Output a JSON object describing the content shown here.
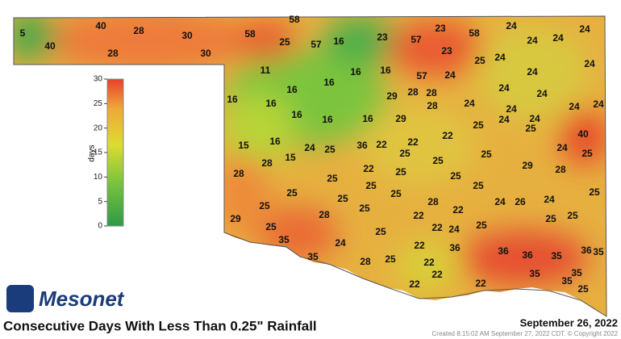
{
  "title": "Consecutive Days With Less Than 0.25\" Rainfall",
  "date": "September 26, 2022",
  "credit": "Created 8:15:02 AM September 27, 2022 CDT. © Copyright 2022",
  "logo": "Mesonet",
  "legend": {
    "label": "days",
    "range": [
      0,
      30
    ],
    "ticks": [
      0,
      5,
      10,
      15,
      20,
      25,
      30
    ]
  },
  "stations": [
    5,
    40,
    40,
    28,
    28,
    30,
    30,
    58,
    58,
    25,
    57,
    16,
    23,
    57,
    23,
    58,
    23,
    24,
    24,
    24,
    24,
    25,
    24,
    24,
    24,
    11,
    16,
    16,
    16,
    57,
    24,
    24,
    24,
    16,
    16,
    16,
    29,
    28,
    28,
    28,
    24,
    24,
    24,
    24,
    16,
    16,
    16,
    29,
    24,
    24,
    25,
    25,
    22,
    40,
    15,
    16,
    24,
    25,
    36,
    22,
    22,
    25,
    24,
    25,
    28,
    15,
    25,
    25,
    28,
    22,
    25,
    29,
    28,
    25,
    25,
    25,
    25,
    25,
    25,
    25,
    28,
    25,
    25,
    25,
    22,
    24,
    26,
    24,
    29,
    28,
    22,
    25,
    25,
    25,
    22,
    24,
    25,
    25,
    35,
    24,
    22,
    36,
    36,
    36,
    36,
    35,
    35,
    25,
    35,
    28,
    22,
    22,
    35,
    35,
    22,
    22,
    35,
    25
  ]
}
